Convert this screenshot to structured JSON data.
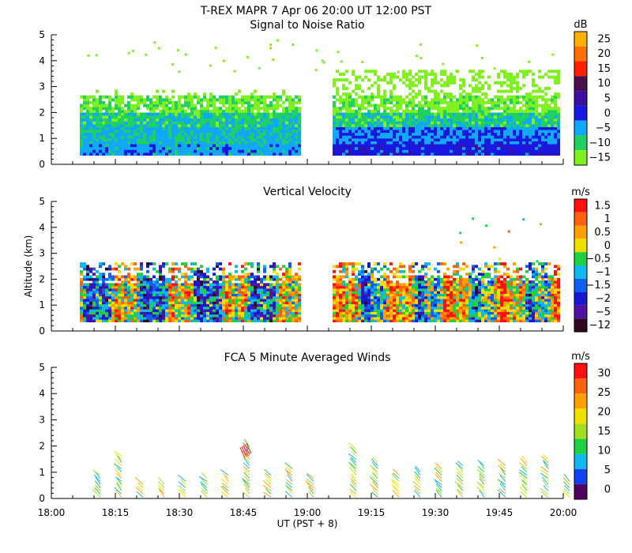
{
  "header": {
    "title": "T-REX   MAPR   7 Apr 06   20:00 UT   12:00   PST"
  },
  "chart_data": [
    {
      "type": "heatmap",
      "title": "Signal to Noise Ratio",
      "ylabel": "",
      "ylim": [
        0,
        5
      ],
      "yticks": [
        "0",
        "1",
        "2",
        "3",
        "4",
        "5"
      ],
      "xlim": [
        "18:00",
        "20:00"
      ],
      "data_gap": [
        "18:59",
        "19:05"
      ],
      "colorbar": {
        "unit": "dB",
        "levels": [
          "25",
          "20",
          "15",
          "10",
          "5",
          "0",
          "−5",
          "−10",
          "−15"
        ],
        "colors": [
          "#ffb000",
          "#ff7000",
          "#ff2000",
          "#4a1050",
          "#3a10a0",
          "#1818e0",
          "#10a8f8",
          "#20d060",
          "#80f020"
        ]
      },
      "layers_description": "mostly -15 to -5 dB above 2 km, 0 to -5 dB below 1.5 km"
    },
    {
      "type": "heatmap",
      "title": "Vertical Velocity",
      "ylabel": "Altitude  (km)",
      "ylim": [
        0,
        5
      ],
      "yticks": [
        "0",
        "1",
        "2",
        "3",
        "4",
        "5"
      ],
      "xlim": [
        "18:00",
        "20:00"
      ],
      "data_gap": [
        "18:59",
        "19:05"
      ],
      "colorbar": {
        "unit": "m/s",
        "levels": [
          "1.5",
          "1",
          "0.5",
          "0",
          "−0.5",
          "−1",
          "−1.5",
          "−2",
          "−5",
          "−12"
        ],
        "colors": [
          "#ff1010",
          "#ff6010",
          "#ffa000",
          "#f0e000",
          "#20d040",
          "#10b8f0",
          "#1060f0",
          "#1818d0",
          "#5010a0",
          "#300820"
        ]
      }
    },
    {
      "type": "scatter",
      "title": "FCA 5 Minute Averaged Winds",
      "xlabel": "UT  (PST + 8)",
      "ylim": [
        0,
        5
      ],
      "yticks": [
        "0",
        "1",
        "2",
        "3",
        "4",
        "5"
      ],
      "xticks": [
        "18:00",
        "18:15",
        "18:30",
        "18:45",
        "19:00",
        "19:15",
        "19:30",
        "19:45",
        "20:00"
      ],
      "colorbar": {
        "unit": "m/s",
        "levels": [
          "30",
          "25",
          "20",
          "15",
          "10",
          "5",
          "0"
        ],
        "colors": [
          "#ff1010",
          "#ff6010",
          "#ffa000",
          "#f0e000",
          "#a0e020",
          "#20d040",
          "#10b8f0",
          "#1040f0",
          "#500060"
        ]
      },
      "barb_times_min": [
        10,
        15,
        20,
        25,
        30,
        35,
        40,
        45,
        50,
        55,
        60,
        70,
        75,
        80,
        85,
        90,
        95,
        100,
        105,
        110,
        115,
        120
      ],
      "barb_max_alt_km": [
        0.9,
        1.7,
        0.6,
        0.6,
        0.7,
        0.8,
        0.9,
        2.0,
        0.9,
        1.2,
        0.8,
        1.9,
        1.4,
        1.0,
        1.1,
        1.2,
        1.3,
        1.3,
        1.3,
        1.4,
        1.5,
        0.7
      ]
    }
  ]
}
